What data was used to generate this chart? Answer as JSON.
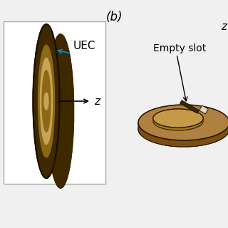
{
  "title_label": "(b)",
  "bg_color": "#f0f0f0",
  "left_panel": {
    "rect_color": "#ffffff",
    "rect_edge": "#aaaaaa",
    "outer_ring_color": "#3d2800",
    "inner_ring_color": "#8b6914",
    "center_color": "#c8a45a",
    "label_UEC": "UEC",
    "label_z": "z",
    "arrow_color_blue": "#0088cc",
    "arrow_color_black": "#000000"
  },
  "right_panel": {
    "disc_color": "#b08040",
    "disc_edge": "#2a1a00",
    "slot_label": "Empty slot",
    "slot_color": "#d4b878",
    "slot_dark": "#3a2800"
  }
}
